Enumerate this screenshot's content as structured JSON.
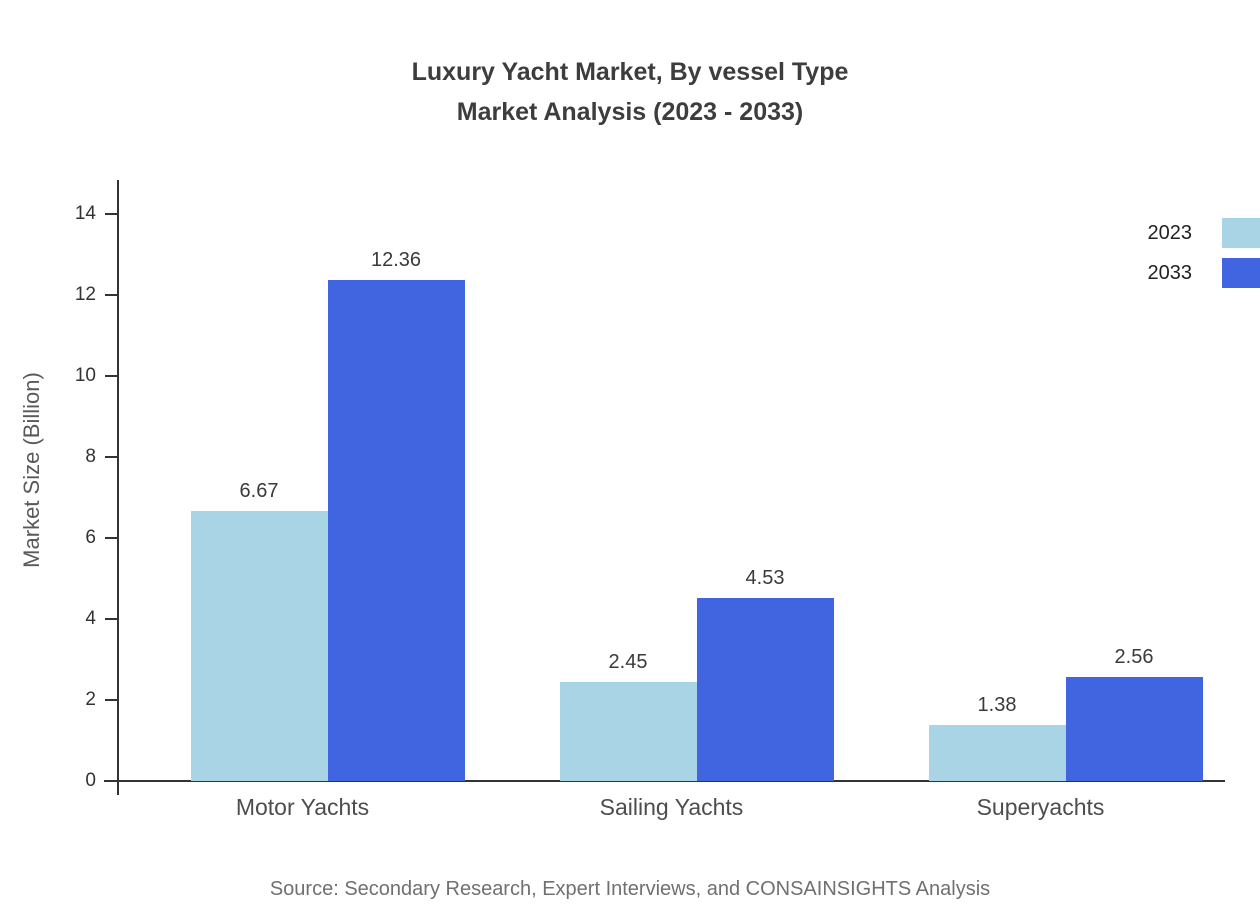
{
  "title": {
    "line1": "Luxury Yacht Market, By vessel Type",
    "line2": "Market Analysis (2023 - 2033)"
  },
  "source": "Source: Secondary Research, Expert Interviews, and CONSAINSIGHTS Analysis",
  "chart_data": {
    "type": "bar",
    "title": "Luxury Yacht Market, By vessel Type Market Analysis (2023 - 2033)",
    "categories": [
      "Motor Yachts",
      "Sailing Yachts",
      "Superyachts"
    ],
    "series": [
      {
        "name": "2023",
        "color": "#a9d4e5",
        "values": [
          6.67,
          2.45,
          1.38
        ]
      },
      {
        "name": "2033",
        "color": "#4164e1",
        "values": [
          12.36,
          4.53,
          2.56
        ]
      }
    ],
    "value_labels": [
      [
        "6.67",
        "12.36"
      ],
      [
        "2.45",
        "4.53"
      ],
      [
        "1.38",
        "2.56"
      ]
    ],
    "xlabel": "",
    "ylabel": "Market Size (Billion)",
    "ylim": [
      0,
      14
    ],
    "yticks": [
      0,
      2,
      4,
      6,
      8,
      10,
      12,
      14
    ],
    "grid": false,
    "legend_position": "top-right"
  }
}
